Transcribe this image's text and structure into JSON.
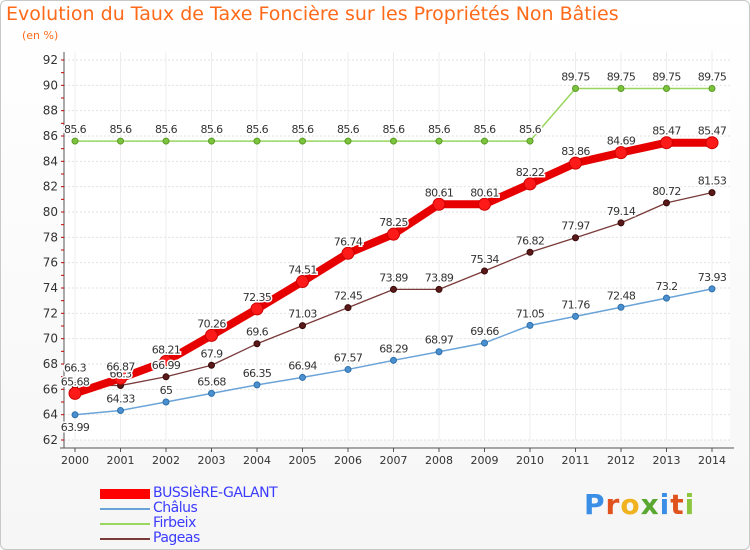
{
  "title": "Evolution du Taux de Taxe Foncière sur les Propriétés Non Bâties",
  "subtitle": "(en %)",
  "logo_text": "Proxiti",
  "chart_data": {
    "type": "line",
    "title": "Evolution du Taux de Taxe Foncière sur les Propriétés Non Bâties",
    "ylabel": "(en %)",
    "xlabel": "",
    "x": [
      2000,
      2001,
      2002,
      2003,
      2004,
      2005,
      2006,
      2007,
      2008,
      2009,
      2010,
      2011,
      2012,
      2013,
      2014
    ],
    "ylim": [
      62,
      92
    ],
    "yticks": [
      62,
      64,
      66,
      68,
      70,
      72,
      74,
      76,
      78,
      80,
      82,
      84,
      86,
      88,
      90,
      92
    ],
    "grid": true,
    "legend_position": "bottom-left",
    "series": [
      {
        "name": "BUSSIèRE-GALANT",
        "color": "#ff0000",
        "values": [
          65.68,
          66.87,
          68.21,
          70.26,
          72.35,
          74.51,
          76.74,
          78.25,
          80.61,
          80.61,
          82.22,
          83.86,
          84.69,
          85.47,
          85.47
        ],
        "labels": [
          "65.68",
          "66.87",
          "68.21",
          "70.26",
          "72.35",
          "74.51",
          "76.74",
          "78.25",
          "80.61",
          "80.61",
          "82.22",
          "83.86",
          "84.69",
          "85.47",
          "85.47"
        ]
      },
      {
        "name": "Châlus",
        "color": "#5b9bd5",
        "values": [
          63.99,
          64.33,
          65.0,
          65.68,
          66.35,
          66.94,
          67.57,
          68.29,
          68.97,
          69.66,
          71.05,
          71.76,
          72.48,
          73.2,
          73.93
        ],
        "labels": [
          "63.99",
          "64.33",
          "65",
          "65.68",
          "66.35",
          "66.94",
          "67.57",
          "68.29",
          "68.97",
          "69.66",
          "71.05",
          "71.76",
          "72.48",
          "73.2",
          "73.93"
        ]
      },
      {
        "name": "Firbeix",
        "color": "#8fd14f",
        "values": [
          85.6,
          85.6,
          85.6,
          85.6,
          85.6,
          85.6,
          85.6,
          85.6,
          85.6,
          85.6,
          85.6,
          89.75,
          89.75,
          89.75,
          89.75
        ],
        "labels": [
          "85.6",
          "85.6",
          "85.6",
          "85.6",
          "85.6",
          "85.6",
          "85.6",
          "85.6",
          "85.6",
          "85.6",
          "85.6",
          "89.75",
          "89.75",
          "89.75",
          "89.75"
        ]
      },
      {
        "name": "Pageas",
        "color": "#7a2e2e",
        "values": [
          66.3,
          66.3,
          66.99,
          67.9,
          69.6,
          71.03,
          72.45,
          73.89,
          73.89,
          75.34,
          76.82,
          77.97,
          79.14,
          80.72,
          81.53
        ],
        "labels": [
          "66.3",
          "66.3",
          "66.99",
          "67.9",
          "69.6",
          "71.03",
          "72.45",
          "73.89",
          "73.89",
          "75.34",
          "76.82",
          "77.97",
          "79.14",
          "80.72",
          "81.53"
        ]
      }
    ]
  }
}
